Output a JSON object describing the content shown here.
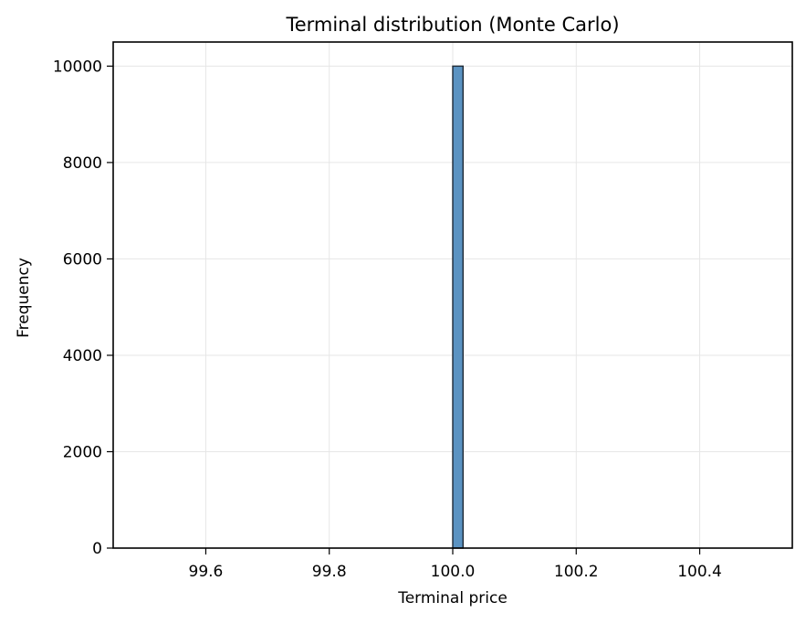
{
  "chart_data": {
    "type": "bar",
    "title": "Terminal distribution (Monte Carlo)",
    "xlabel": "Terminal price",
    "ylabel": "Frequency",
    "xlim": [
      99.45,
      100.55
    ],
    "ylim": [
      0,
      10500
    ],
    "xticks": [
      99.6,
      99.8,
      100.0,
      100.2,
      100.4
    ],
    "xtick_labels": [
      "99.6",
      "99.8",
      "100.0",
      "100.2",
      "100.4"
    ],
    "yticks": [
      0,
      2000,
      4000,
      6000,
      8000,
      10000
    ],
    "ytick_labels": [
      "0",
      "2000",
      "4000",
      "6000",
      "8000",
      "10000"
    ],
    "grid": true,
    "bins": [
      {
        "x0": 99.5,
        "x1": 100.0,
        "count": 0
      },
      {
        "x0": 100.0,
        "x1": 100.0167,
        "count": 10000
      },
      {
        "x0": 100.0167,
        "x1": 100.5,
        "count": 0
      }
    ],
    "colors": {
      "bar_fill": "#5b93c2",
      "bar_edge": "#1f2a36",
      "grid": "#e6e6e6",
      "axis": "#000000"
    }
  }
}
